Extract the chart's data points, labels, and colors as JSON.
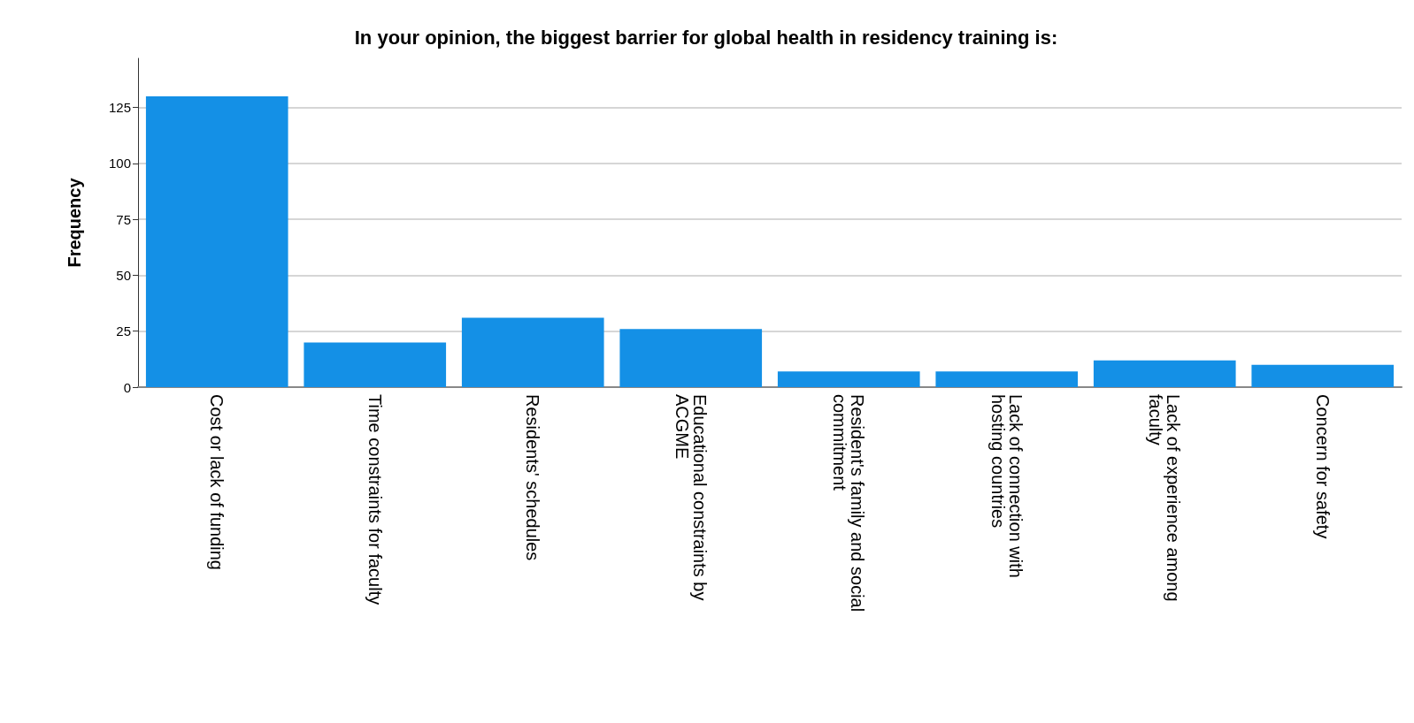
{
  "chart_data": {
    "type": "bar",
    "title": "In your opinion, the biggest barrier for global health in residency training is:",
    "ylabel": "Frequency",
    "categories": [
      "Cost or lack of funding",
      "Time constraints for faculty",
      "Residents' schedules",
      "Educational constraints by ACGME",
      "Resident's family and social commitment",
      "Lack of connection with hosting countries",
      "Lack of experience among faculty",
      "Concern for safety"
    ],
    "values": [
      130,
      20,
      31,
      26,
      7,
      7,
      12,
      10
    ],
    "color": "#1490e6",
    "ylim": [
      0,
      147
    ],
    "yticks": [
      0,
      25,
      50,
      75,
      100,
      125
    ],
    "grid": "y"
  }
}
